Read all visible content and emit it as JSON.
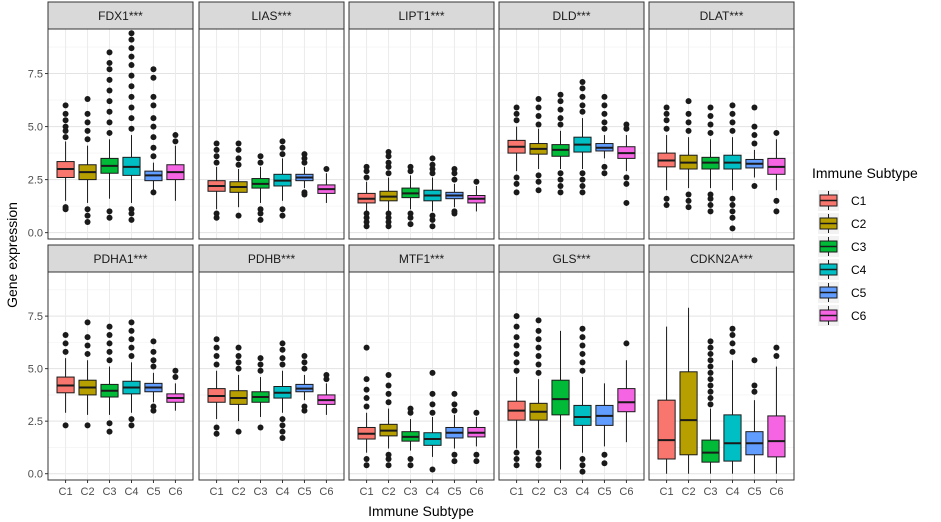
{
  "chart_data": {
    "type": "box",
    "title": "",
    "xlabel": "Immune Subtype",
    "ylabel": "Gene expression",
    "ylim": [
      -0.3,
      9.6
    ],
    "yticks": [
      0.0,
      2.5,
      5.0,
      7.5
    ],
    "ytick_labels": [
      "0.0",
      "2.5",
      "5.0",
      "7.5"
    ],
    "categories": [
      "C1",
      "C2",
      "C3",
      "C4",
      "C5",
      "C6"
    ],
    "colors": [
      "#F8766D",
      "#B79F00",
      "#00BA38",
      "#00BFC4",
      "#619CFF",
      "#F564E3"
    ],
    "legend": {
      "title": "Immune Subtype",
      "position": "right",
      "entries": [
        "C1",
        "C2",
        "C3",
        "C4",
        "C5",
        "C6"
      ]
    },
    "panels": [
      {
        "name": "FDX1***",
        "boxes": [
          {
            "low": 1.5,
            "q1": 2.6,
            "median": 3.0,
            "q3": 3.35,
            "high": 4.3,
            "outliers": [
              1.1,
              1.2,
              4.5,
              4.8,
              5.0,
              5.3,
              5.6,
              6.0
            ]
          },
          {
            "low": 1.4,
            "q1": 2.5,
            "median": 2.85,
            "q3": 3.2,
            "high": 4.1,
            "outliers": [
              0.5,
              0.8,
              1.1,
              4.4,
              4.8,
              5.2,
              5.6,
              6.3
            ]
          },
          {
            "low": 1.6,
            "q1": 2.8,
            "median": 3.15,
            "q3": 3.5,
            "high": 4.4,
            "outliers": [
              0.7,
              1.0,
              4.7,
              5.2,
              5.7,
              6.2,
              6.7,
              7.2,
              7.7,
              8.0,
              8.5
            ]
          },
          {
            "low": 1.4,
            "q1": 2.7,
            "median": 3.1,
            "q3": 3.55,
            "high": 4.6,
            "outliers": [
              0.6,
              0.9,
              1.1,
              4.9,
              5.4,
              5.9,
              6.4,
              6.9,
              7.4,
              7.9,
              8.3,
              8.7,
              9.1,
              9.4
            ]
          },
          {
            "low": 2.0,
            "q1": 2.45,
            "median": 2.7,
            "q3": 2.9,
            "high": 3.3,
            "outliers": [
              1.9,
              3.6,
              4.0,
              4.5,
              5.0,
              5.4,
              6.0,
              6.4,
              7.3,
              7.7
            ]
          },
          {
            "low": 1.5,
            "q1": 2.5,
            "median": 2.85,
            "q3": 3.2,
            "high": 4.1,
            "outliers": [
              4.3,
              4.6
            ]
          }
        ]
      },
      {
        "name": "LIAS***",
        "boxes": [
          {
            "low": 1.1,
            "q1": 1.95,
            "median": 2.2,
            "q3": 2.45,
            "high": 3.1,
            "outliers": [
              0.7,
              0.9,
              3.3,
              3.6,
              3.9,
              4.2
            ]
          },
          {
            "low": 1.2,
            "q1": 1.9,
            "median": 2.15,
            "q3": 2.4,
            "high": 3.0,
            "outliers": [
              0.8,
              3.2,
              3.5,
              3.9,
              4.2
            ]
          },
          {
            "low": 1.4,
            "q1": 2.1,
            "median": 2.3,
            "q3": 2.55,
            "high": 3.1,
            "outliers": [
              0.6,
              0.9,
              1.1,
              3.3,
              3.6
            ]
          },
          {
            "low": 1.5,
            "q1": 2.2,
            "median": 2.45,
            "q3": 2.75,
            "high": 3.5,
            "outliers": [
              0.8,
              1.1,
              3.7,
              4.0,
              4.3
            ]
          },
          {
            "low": 2.1,
            "q1": 2.45,
            "median": 2.6,
            "q3": 2.75,
            "high": 3.1,
            "outliers": [
              1.8,
              1.9,
              3.3,
              3.5,
              3.7
            ]
          },
          {
            "low": 1.4,
            "q1": 1.85,
            "median": 2.05,
            "q3": 2.25,
            "high": 2.8,
            "outliers": [
              3.0
            ]
          }
        ]
      },
      {
        "name": "LIPT1***",
        "boxes": [
          {
            "low": 1.0,
            "q1": 1.4,
            "median": 1.6,
            "q3": 1.85,
            "high": 2.4,
            "outliers": [
              0.3,
              0.5,
              0.7,
              0.9,
              2.6,
              2.9,
              3.1
            ]
          },
          {
            "low": 1.0,
            "q1": 1.5,
            "median": 1.7,
            "q3": 1.95,
            "high": 2.6,
            "outliers": [
              0.3,
              0.5,
              0.7,
              0.9,
              2.8,
              3.1,
              3.3,
              3.6,
              3.8
            ]
          },
          {
            "low": 1.1,
            "q1": 1.65,
            "median": 1.85,
            "q3": 2.1,
            "high": 2.7,
            "outliers": [
              0.4,
              0.7,
              0.9,
              2.9,
              3.1
            ]
          },
          {
            "low": 1.0,
            "q1": 1.5,
            "median": 1.75,
            "q3": 2.0,
            "high": 2.6,
            "outliers": [
              0.3,
              0.6,
              0.8,
              2.8,
              3.0,
              3.2,
              3.5
            ]
          },
          {
            "low": 1.2,
            "q1": 1.6,
            "median": 1.75,
            "q3": 1.9,
            "high": 2.3,
            "outliers": [
              0.9,
              1.0,
              2.5,
              2.8,
              3.0
            ]
          },
          {
            "low": 1.0,
            "q1": 1.4,
            "median": 1.6,
            "q3": 1.75,
            "high": 2.2,
            "outliers": [
              2.4
            ]
          }
        ]
      },
      {
        "name": "DLD***",
        "boxes": [
          {
            "low": 2.9,
            "q1": 3.75,
            "median": 4.05,
            "q3": 4.35,
            "high": 5.0,
            "outliers": [
              1.9,
              2.3,
              2.6,
              5.3,
              5.6,
              5.9
            ]
          },
          {
            "low": 3.0,
            "q1": 3.7,
            "median": 3.95,
            "q3": 4.2,
            "high": 4.9,
            "outliers": [
              2.0,
              2.4,
              2.7,
              5.1,
              5.5,
              5.9,
              6.3
            ]
          },
          {
            "low": 3.0,
            "q1": 3.6,
            "median": 3.9,
            "q3": 4.15,
            "high": 4.8,
            "outliers": [
              1.9,
              2.2,
              2.5,
              2.8,
              5.1,
              5.4,
              5.8,
              6.2,
              6.5
            ]
          },
          {
            "low": 3.0,
            "q1": 3.8,
            "median": 4.15,
            "q3": 4.5,
            "high": 5.4,
            "outliers": [
              1.9,
              2.2,
              2.5,
              2.8,
              5.7,
              6.0,
              6.4,
              6.8,
              7.1
            ]
          },
          {
            "low": 3.5,
            "q1": 3.85,
            "median": 4.0,
            "q3": 4.2,
            "high": 4.6,
            "outliers": [
              2.8,
              3.1,
              4.9,
              5.2,
              5.6,
              6.0,
              6.4
            ]
          },
          {
            "low": 2.9,
            "q1": 3.5,
            "median": 3.75,
            "q3": 4.05,
            "high": 4.6,
            "outliers": [
              1.4,
              2.3,
              2.6,
              4.9,
              5.1
            ]
          }
        ]
      },
      {
        "name": "DLAT***",
        "boxes": [
          {
            "low": 2.0,
            "q1": 3.1,
            "median": 3.4,
            "q3": 3.75,
            "high": 4.6,
            "outliers": [
              1.3,
              1.6,
              4.9,
              5.3,
              5.6,
              5.9
            ]
          },
          {
            "low": 2.1,
            "q1": 3.0,
            "median": 3.3,
            "q3": 3.65,
            "high": 4.5,
            "outliers": [
              1.2,
              1.5,
              1.8,
              4.8,
              5.2,
              5.6,
              6.2
            ]
          },
          {
            "low": 2.1,
            "q1": 3.0,
            "median": 3.3,
            "q3": 3.55,
            "high": 4.4,
            "outliers": [
              1.0,
              1.3,
              1.6,
              1.8,
              4.7,
              5.1,
              5.5,
              5.9
            ]
          },
          {
            "low": 2.0,
            "q1": 3.0,
            "median": 3.3,
            "q3": 3.65,
            "high": 4.5,
            "outliers": [
              0.2,
              0.7,
              1.0,
              1.3,
              1.6,
              4.8,
              5.2,
              5.6,
              6.0
            ]
          },
          {
            "low": 2.6,
            "q1": 3.05,
            "median": 3.25,
            "q3": 3.45,
            "high": 3.9,
            "outliers": [
              2.2,
              4.2,
              4.6,
              5.0,
              5.9
            ]
          },
          {
            "low": 2.0,
            "q1": 2.75,
            "median": 3.1,
            "q3": 3.5,
            "high": 4.4,
            "outliers": [
              1.0,
              1.5,
              4.7
            ]
          }
        ]
      },
      {
        "name": "PDHA1***",
        "boxes": [
          {
            "low": 2.9,
            "q1": 3.85,
            "median": 4.2,
            "q3": 4.6,
            "high": 5.5,
            "outliers": [
              2.3,
              5.8,
              6.2,
              6.6
            ]
          },
          {
            "low": 2.8,
            "q1": 3.75,
            "median": 4.1,
            "q3": 4.45,
            "high": 5.4,
            "outliers": [
              2.3,
              5.7,
              6.1,
              6.5,
              7.2
            ]
          },
          {
            "low": 2.8,
            "q1": 3.65,
            "median": 3.95,
            "q3": 4.25,
            "high": 5.1,
            "outliers": [
              2.0,
              2.4,
              5.4,
              5.8,
              6.2,
              6.6,
              7.0
            ]
          },
          {
            "low": 2.9,
            "q1": 3.8,
            "median": 4.1,
            "q3": 4.4,
            "high": 5.3,
            "outliers": [
              2.3,
              2.6,
              5.6,
              6.0,
              6.4,
              6.8,
              7.2
            ]
          },
          {
            "low": 3.4,
            "q1": 3.9,
            "median": 4.1,
            "q3": 4.3,
            "high": 4.8,
            "outliers": [
              3.0,
              3.2,
              5.1,
              5.4,
              5.8,
              6.3
            ]
          },
          {
            "low": 3.0,
            "q1": 3.4,
            "median": 3.6,
            "q3": 3.8,
            "high": 4.3,
            "outliers": [
              4.6,
              4.9
            ]
          }
        ]
      },
      {
        "name": "PDHB***",
        "boxes": [
          {
            "low": 2.6,
            "q1": 3.4,
            "median": 3.7,
            "q3": 4.05,
            "high": 4.9,
            "outliers": [
              1.9,
              2.2,
              5.2,
              5.6,
              6.0,
              6.4
            ]
          },
          {
            "low": 2.5,
            "q1": 3.3,
            "median": 3.6,
            "q3": 3.95,
            "high": 4.7,
            "outliers": [
              2.0,
              5.0,
              5.3,
              5.6,
              6.0
            ]
          },
          {
            "low": 2.7,
            "q1": 3.4,
            "median": 3.65,
            "q3": 3.9,
            "high": 4.6,
            "outliers": [
              2.2,
              4.9,
              5.2,
              5.5
            ]
          },
          {
            "low": 2.9,
            "q1": 3.6,
            "median": 3.85,
            "q3": 4.15,
            "high": 4.9,
            "outliers": [
              1.7,
              2.0,
              2.3,
              2.6,
              5.2,
              5.5,
              5.9,
              6.2
            ]
          },
          {
            "low": 3.5,
            "q1": 3.9,
            "median": 4.05,
            "q3": 4.25,
            "high": 4.7,
            "outliers": [
              3.0,
              3.2,
              5.0,
              5.3,
              5.6
            ]
          },
          {
            "low": 2.8,
            "q1": 3.3,
            "median": 3.5,
            "q3": 3.75,
            "high": 4.3,
            "outliers": [
              4.5,
              4.7
            ]
          }
        ]
      },
      {
        "name": "MTF1***",
        "boxes": [
          {
            "low": 1.0,
            "q1": 1.65,
            "median": 1.9,
            "q3": 2.2,
            "high": 2.9,
            "outliers": [
              0.4,
              0.7,
              3.2,
              3.6,
              4.0,
              4.5,
              6.0
            ]
          },
          {
            "low": 1.2,
            "q1": 1.8,
            "median": 2.05,
            "q3": 2.35,
            "high": 3.1,
            "outliers": [
              0.4,
              0.7,
              0.9,
              3.4,
              3.8,
              4.2,
              4.7
            ]
          },
          {
            "low": 1.1,
            "q1": 1.55,
            "median": 1.75,
            "q3": 2.0,
            "high": 2.6,
            "outliers": [
              0.4,
              0.7,
              2.9,
              3.1
            ]
          },
          {
            "low": 0.8,
            "q1": 1.35,
            "median": 1.65,
            "q3": 1.95,
            "high": 2.7,
            "outliers": [
              0.2,
              2.9,
              3.3,
              3.8,
              4.8
            ]
          },
          {
            "low": 1.2,
            "q1": 1.7,
            "median": 1.95,
            "q3": 2.2,
            "high": 2.8,
            "outliers": [
              0.6,
              0.9,
              3.0,
              3.3,
              3.8
            ]
          },
          {
            "low": 1.3,
            "q1": 1.75,
            "median": 1.95,
            "q3": 2.2,
            "high": 2.7,
            "outliers": [
              0.6,
              0.9,
              2.9
            ]
          }
        ]
      },
      {
        "name": "GLS***",
        "boxes": [
          {
            "low": 1.2,
            "q1": 2.55,
            "median": 3.0,
            "q3": 3.45,
            "high": 4.6,
            "outliers": [
              0.4,
              0.7,
              1.0,
              4.9,
              5.3,
              5.7,
              6.1,
              6.5,
              7.0,
              7.5
            ]
          },
          {
            "low": 1.2,
            "q1": 2.55,
            "median": 2.95,
            "q3": 3.35,
            "high": 4.5,
            "outliers": [
              0.4,
              0.7,
              1.0,
              4.8,
              5.2,
              5.6,
              6.0,
              6.4,
              6.8,
              7.3
            ]
          },
          {
            "low": 0.2,
            "q1": 2.8,
            "median": 3.55,
            "q3": 4.45,
            "high": 6.8,
            "outliers": []
          },
          {
            "low": 1.0,
            "q1": 2.3,
            "median": 2.7,
            "q3": 3.25,
            "high": 4.6,
            "outliers": [
              0.1,
              0.4,
              0.7,
              4.9,
              5.3,
              5.7,
              6.1,
              6.5,
              6.9
            ]
          },
          {
            "low": 1.3,
            "q1": 2.3,
            "median": 2.75,
            "q3": 3.25,
            "high": 4.3,
            "outliers": [
              0.5,
              0.9
            ]
          },
          {
            "low": 1.5,
            "q1": 2.95,
            "median": 3.4,
            "q3": 4.05,
            "high": 5.4,
            "outliers": [
              6.2
            ]
          }
        ]
      },
      {
        "name": "CDKN2A***",
        "boxes": [
          {
            "low": 0.0,
            "q1": 0.7,
            "median": 1.6,
            "q3": 3.5,
            "high": 7.0,
            "outliers": []
          },
          {
            "low": 0.0,
            "q1": 0.9,
            "median": 2.55,
            "q3": 4.85,
            "high": 7.9,
            "outliers": []
          },
          {
            "low": 0.0,
            "q1": 0.55,
            "median": 1.0,
            "q3": 1.6,
            "high": 3.1,
            "outliers": [
              3.3,
              3.6,
              3.9,
              4.2,
              4.5,
              4.8,
              5.1,
              5.4,
              5.7,
              6.0,
              6.3
            ]
          },
          {
            "low": 0.0,
            "q1": 0.6,
            "median": 1.45,
            "q3": 2.8,
            "high": 5.4,
            "outliers": [
              5.8,
              6.2,
              6.6,
              6.9
            ]
          },
          {
            "low": 0.0,
            "q1": 0.9,
            "median": 1.45,
            "q3": 2.0,
            "high": 3.5,
            "outliers": [
              3.9,
              4.2,
              5.4
            ]
          },
          {
            "low": 0.0,
            "q1": 0.8,
            "median": 1.55,
            "q3": 2.75,
            "high": 5.1,
            "outliers": [
              5.6,
              6.0
            ]
          }
        ]
      }
    ]
  }
}
